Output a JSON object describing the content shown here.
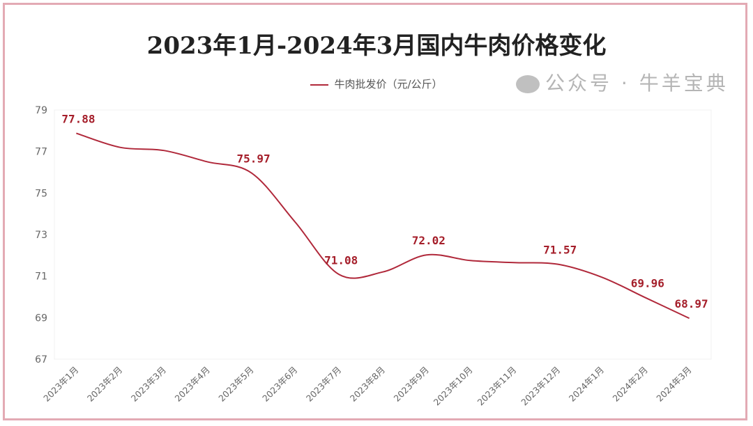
{
  "chart_data": {
    "type": "line",
    "title": "2023年1月-2024年3月国内牛肉价格变化",
    "categories": [
      "2023年1月",
      "2023年2月",
      "2023年3月",
      "2023年4月",
      "2023年5月",
      "2023年6月",
      "2023年7月",
      "2023年8月",
      "2023年9月",
      "2023年10月",
      "2023年11月",
      "2023年12月",
      "2024年1月",
      "2024年2月",
      "2024年3月"
    ],
    "series": [
      {
        "name": "牛肉批发价（元/公斤）",
        "color": "#b0283a",
        "values": [
          77.88,
          77.2,
          77.05,
          76.5,
          75.97,
          73.6,
          71.08,
          71.2,
          72.02,
          71.75,
          71.65,
          71.57,
          70.95,
          69.96,
          68.97
        ],
        "data_labels": {
          "0": "77.88",
          "4": "75.97",
          "6": "71.08",
          "8": "72.02",
          "11": "71.57",
          "13": "69.96",
          "14": "68.97"
        }
      }
    ],
    "ylim": [
      67,
      79
    ],
    "yticks": [
      "67",
      "69",
      "71",
      "73",
      "75",
      "77",
      "79"
    ],
    "xlabel": "",
    "ylabel": "",
    "grid": false,
    "legend": "top-center",
    "smooth": true
  },
  "watermark": "公众号 · 牛羊宝典"
}
